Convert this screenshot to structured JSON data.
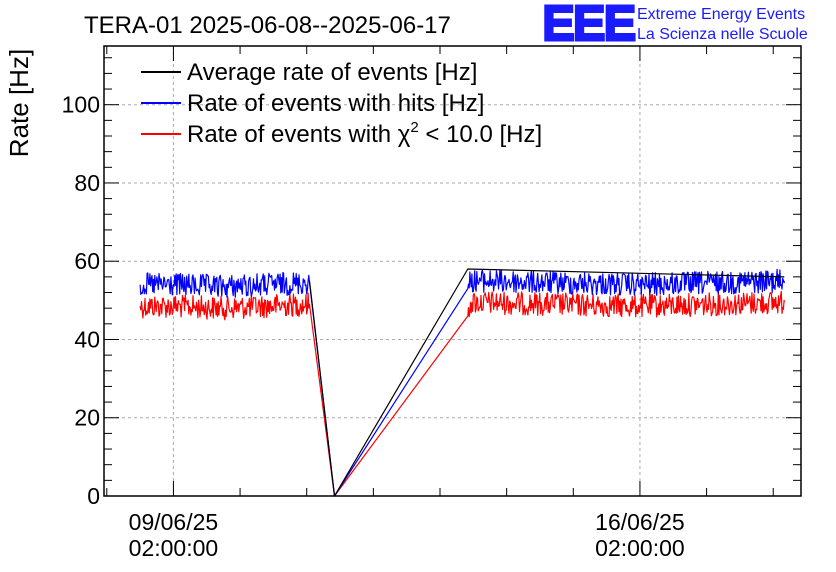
{
  "chart_data": {
    "type": "line",
    "title": "TERA-01 2025-06-08--2025-06-17",
    "ylabel": "Rate [Hz]",
    "xlabel": "",
    "ylim": [
      0,
      115
    ],
    "yticks": [
      0,
      20,
      40,
      60,
      80,
      100
    ],
    "xlim": [
      "2025-06-08T01:00:00",
      "2025-06-18T12:00:00"
    ],
    "xticks": [
      {
        "value": "2025-06-09T02:00:00",
        "date": "09/06/25",
        "time": "02:00:00"
      },
      {
        "value": "2025-06-16T02:00:00",
        "date": "16/06/25",
        "time": "02:00:00"
      }
    ],
    "grid": true,
    "legend_position": "top-left",
    "series": [
      {
        "name": "Average rate of events [Hz]",
        "color": "#000000",
        "noise": 0,
        "points": [
          [
            "2025-06-11T03:00:00",
            55.0
          ],
          [
            "2025-06-11T12:00:00",
            0.0
          ],
          [
            "2025-06-13T12:00:00",
            58.0
          ],
          [
            "2025-06-18T06:00:00",
            56.0
          ]
        ]
      },
      {
        "name": "Rate of events with hits [Hz]",
        "color": "#0000ff",
        "noise": 3,
        "points": [
          [
            "2025-06-08T14:00:00",
            54.0
          ],
          [
            "2025-06-09T02:00:00",
            54.0
          ],
          [
            "2025-06-09T20:00:00",
            53.5
          ],
          [
            "2025-06-11T03:00:00",
            54.5
          ],
          [
            "2025-06-11T12:00:00",
            0.0
          ],
          [
            "2025-06-13T12:00:00",
            53.0
          ],
          [
            "2025-06-13T13:00:00",
            55.0
          ],
          [
            "2025-06-16T02:00:00",
            54.0
          ],
          [
            "2025-06-18T06:00:00",
            55.0
          ]
        ]
      },
      {
        "name": "Rate of events with χ² < 10.0 [Hz]",
        "legend_prefix": "Rate of events with ",
        "legend_symbol": "χ",
        "legend_sup": "2",
        "legend_suffix": " < 10.0 [Hz]",
        "color": "#ff0000",
        "noise": 3,
        "points": [
          [
            "2025-06-08T14:00:00",
            48.5
          ],
          [
            "2025-06-09T02:00:00",
            48.5
          ],
          [
            "2025-06-09T20:00:00",
            48.0
          ],
          [
            "2025-06-11T03:00:00",
            49.0
          ],
          [
            "2025-06-11T12:00:00",
            0.0
          ],
          [
            "2025-06-13T12:00:00",
            46.0
          ],
          [
            "2025-06-13T13:00:00",
            49.5
          ],
          [
            "2025-06-16T02:00:00",
            48.5
          ],
          [
            "2025-06-18T06:00:00",
            49.5
          ]
        ]
      }
    ]
  },
  "logo": {
    "mark": "EEE",
    "line1": "Extreme Energy Events",
    "line2": "La Scienza nelle Scuole"
  }
}
